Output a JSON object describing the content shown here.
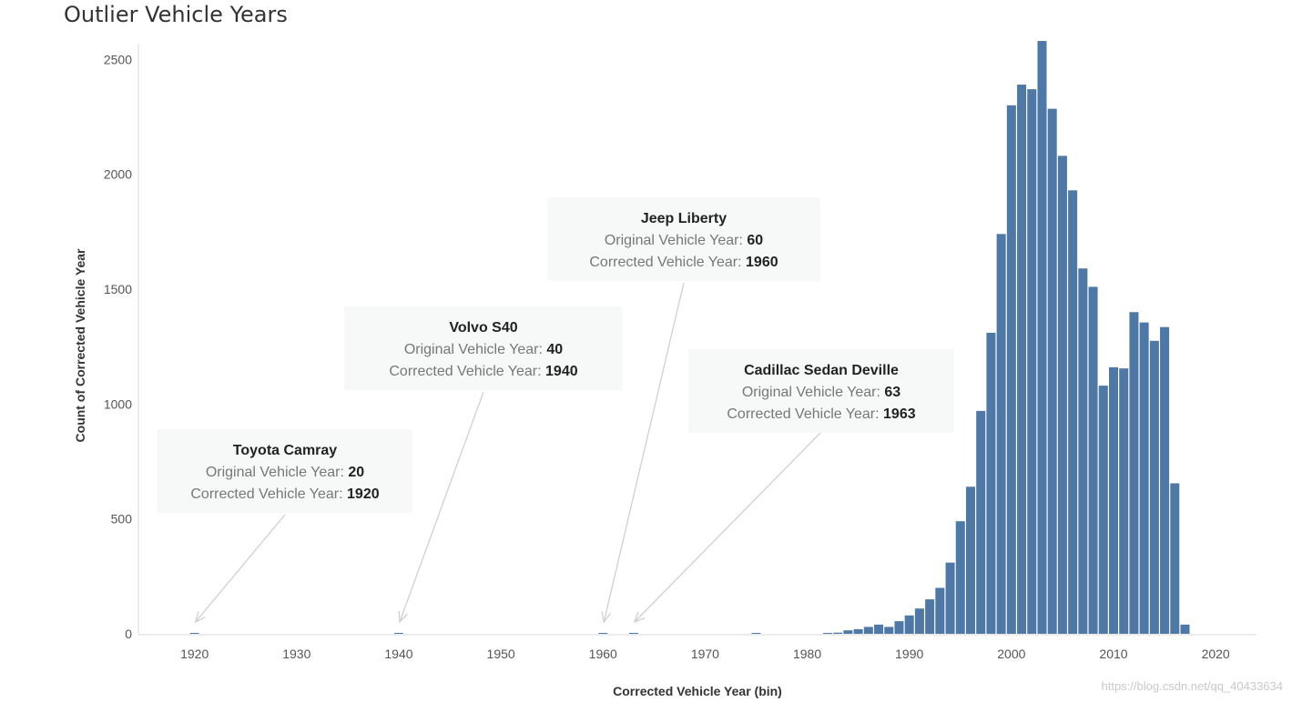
{
  "chart_data": {
    "type": "bar",
    "title": "Outlier Vehicle Years",
    "xlabel": "Corrected Vehicle Year (bin)",
    "ylabel": "Count of Corrected Vehicle Year",
    "xlim": [
      1914.5,
      2024
    ],
    "ylim": [
      0,
      2600
    ],
    "x_ticks": [
      1920,
      1930,
      1940,
      1950,
      1960,
      1970,
      1980,
      1990,
      2000,
      2010,
      2020
    ],
    "y_ticks": [
      0,
      500,
      1000,
      1500,
      2000,
      2500
    ],
    "bar_color": "#4e79a7",
    "bars": {
      "x": [
        1920,
        1940,
        1960,
        1963,
        1975,
        1982,
        1983,
        1984,
        1985,
        1986,
        1987,
        1988,
        1989,
        1990,
        1991,
        1992,
        1993,
        1994,
        1995,
        1996,
        1997,
        1998,
        1999,
        2000,
        2001,
        2002,
        2003,
        2004,
        2005,
        2006,
        2007,
        2008,
        2009,
        2010,
        2011,
        2012,
        2013,
        2014,
        2015,
        2016,
        2017
      ],
      "values": [
        1,
        1,
        1,
        1,
        3,
        2,
        5,
        15,
        20,
        30,
        40,
        30,
        55,
        80,
        110,
        150,
        200,
        310,
        490,
        640,
        970,
        1310,
        1740,
        2300,
        2390,
        2370,
        2580,
        2285,
        2080,
        1930,
        1590,
        1510,
        1080,
        1160,
        1155,
        1400,
        1355,
        1275,
        1335,
        655,
        40
      ]
    },
    "annotations": [
      {
        "name": "Toyota Camray",
        "original_label": "Original Vehicle Year:",
        "original": "20",
        "corrected_label": "Corrected Vehicle Year:",
        "corrected": "1920",
        "x": 1920
      },
      {
        "name": "Volvo S40",
        "original_label": "Original Vehicle Year:",
        "original": "40",
        "corrected_label": "Corrected Vehicle Year:",
        "corrected": "1940",
        "x": 1940
      },
      {
        "name": "Jeep Liberty",
        "original_label": "Original Vehicle Year:",
        "original": "60",
        "corrected_label": "Corrected Vehicle Year:",
        "corrected": "1960",
        "x": 1960
      },
      {
        "name": "Cadillac Sedan Deville",
        "original_label": "Original Vehicle Year:",
        "original": "63",
        "corrected_label": "Corrected Vehicle Year:",
        "corrected": "1963",
        "x": 1963
      }
    ]
  },
  "watermark": "https://blog.csdn.net/qq_40433634"
}
